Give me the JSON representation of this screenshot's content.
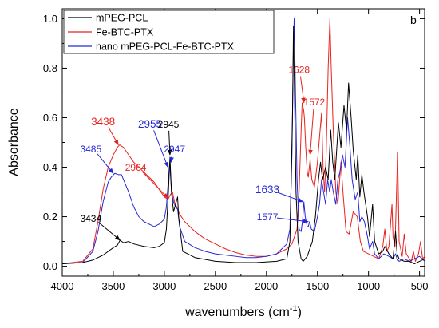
{
  "chart_data": {
    "type": "line",
    "title": "",
    "panel_label": "b",
    "xlabel": "wavenumbers (cm-1)",
    "xlabel_main": "wavenumbers (cm",
    "xlabel_sup": "-1",
    "xlabel_close": ")",
    "ylabel": "Absorbance",
    "xlim": [
      4000,
      450
    ],
    "x_reversed": true,
    "ylim": [
      -0.04,
      1.04
    ],
    "x_ticks": [
      4000,
      3500,
      3000,
      2500,
      2000,
      1500,
      1000,
      500
    ],
    "y_ticks": [
      0.0,
      0.2,
      0.4,
      0.6,
      0.8,
      1.0
    ],
    "y_tick_labels": [
      "0.0",
      "0.2",
      "0.4",
      "0.6",
      "0.8",
      "1.0"
    ],
    "grid": false,
    "legend_position": "top-left",
    "series": [
      {
        "name": "mPEG-PCL",
        "color": "#000000",
        "points": [
          [
            4000,
            0.01
          ],
          [
            3800,
            0.015
          ],
          [
            3700,
            0.025
          ],
          [
            3600,
            0.045
          ],
          [
            3550,
            0.06
          ],
          [
            3500,
            0.075
          ],
          [
            3460,
            0.085
          ],
          [
            3434,
            0.105
          ],
          [
            3400,
            0.095
          ],
          [
            3350,
            0.1
          ],
          [
            3300,
            0.09
          ],
          [
            3200,
            0.08
          ],
          [
            3100,
            0.075
          ],
          [
            3050,
            0.08
          ],
          [
            3000,
            0.095
          ],
          [
            2980,
            0.15
          ],
          [
            2960,
            0.3
          ],
          [
            2945,
            0.44
          ],
          [
            2930,
            0.3
          ],
          [
            2910,
            0.22
          ],
          [
            2890,
            0.25
          ],
          [
            2870,
            0.28
          ],
          [
            2860,
            0.2
          ],
          [
            2820,
            0.06
          ],
          [
            2700,
            0.035
          ],
          [
            2500,
            0.02
          ],
          [
            2300,
            0.015
          ],
          [
            2100,
            0.015
          ],
          [
            1900,
            0.02
          ],
          [
            1800,
            0.03
          ],
          [
            1770,
            0.1
          ],
          [
            1745,
            0.6
          ],
          [
            1735,
            0.97
          ],
          [
            1725,
            0.7
          ],
          [
            1710,
            0.3
          ],
          [
            1690,
            0.1
          ],
          [
            1660,
            0.03
          ],
          [
            1640,
            0.02
          ],
          [
            1600,
            0.04
          ],
          [
            1550,
            0.1
          ],
          [
            1520,
            0.2
          ],
          [
            1490,
            0.35
          ],
          [
            1470,
            0.42
          ],
          [
            1450,
            0.35
          ],
          [
            1420,
            0.4
          ],
          [
            1395,
            0.35
          ],
          [
            1370,
            0.55
          ],
          [
            1350,
            0.42
          ],
          [
            1330,
            0.35
          ],
          [
            1295,
            0.58
          ],
          [
            1270,
            0.48
          ],
          [
            1240,
            0.65
          ],
          [
            1215,
            0.55
          ],
          [
            1195,
            0.74
          ],
          [
            1170,
            0.6
          ],
          [
            1150,
            0.47
          ],
          [
            1120,
            0.35
          ],
          [
            1105,
            0.45
          ],
          [
            1085,
            0.28
          ],
          [
            1065,
            0.37
          ],
          [
            1045,
            0.3
          ],
          [
            1010,
            0.2
          ],
          [
            990,
            0.12
          ],
          [
            960,
            0.25
          ],
          [
            940,
            0.1
          ],
          [
            900,
            0.05
          ],
          [
            860,
            0.06
          ],
          [
            840,
            0.08
          ],
          [
            800,
            0.05
          ],
          [
            760,
            0.03
          ],
          [
            735,
            0.14
          ],
          [
            720,
            0.05
          ],
          [
            700,
            0.03
          ],
          [
            650,
            0.02
          ],
          [
            600,
            0.02
          ],
          [
            550,
            0.01
          ],
          [
            500,
            0.02
          ],
          [
            450,
            0.03
          ]
        ]
      },
      {
        "name": "Fe-BTC-PTX",
        "color": "#e8231f",
        "points": [
          [
            4000,
            0.01
          ],
          [
            3800,
            0.02
          ],
          [
            3700,
            0.07
          ],
          [
            3650,
            0.18
          ],
          [
            3600,
            0.31
          ],
          [
            3550,
            0.4
          ],
          [
            3500,
            0.45
          ],
          [
            3460,
            0.48
          ],
          [
            3438,
            0.49
          ],
          [
            3400,
            0.48
          ],
          [
            3350,
            0.45
          ],
          [
            3300,
            0.42
          ],
          [
            3200,
            0.38
          ],
          [
            3100,
            0.34
          ],
          [
            3050,
            0.31
          ],
          [
            3000,
            0.28
          ],
          [
            2964,
            0.27
          ],
          [
            2940,
            0.29
          ],
          [
            2920,
            0.3
          ],
          [
            2900,
            0.26
          ],
          [
            2850,
            0.21
          ],
          [
            2800,
            0.18
          ],
          [
            2700,
            0.14
          ],
          [
            2600,
            0.11
          ],
          [
            2500,
            0.09
          ],
          [
            2400,
            0.07
          ],
          [
            2300,
            0.055
          ],
          [
            2200,
            0.045
          ],
          [
            2100,
            0.04
          ],
          [
            2000,
            0.04
          ],
          [
            1900,
            0.05
          ],
          [
            1800,
            0.07
          ],
          [
            1750,
            0.09
          ],
          [
            1700,
            0.15
          ],
          [
            1680,
            0.3
          ],
          [
            1660,
            0.55
          ],
          [
            1650,
            0.66
          ],
          [
            1635,
            0.63
          ],
          [
            1628,
            0.6
          ],
          [
            1615,
            0.48
          ],
          [
            1600,
            0.38
          ],
          [
            1590,
            0.36
          ],
          [
            1572,
            0.43
          ],
          [
            1555,
            0.35
          ],
          [
            1530,
            0.32
          ],
          [
            1500,
            0.42
          ],
          [
            1480,
            0.52
          ],
          [
            1460,
            0.62
          ],
          [
            1445,
            0.4
          ],
          [
            1430,
            0.3
          ],
          [
            1415,
            0.45
          ],
          [
            1395,
            0.8
          ],
          [
            1378,
            1.0
          ],
          [
            1365,
            0.8
          ],
          [
            1345,
            0.55
          ],
          [
            1320,
            0.3
          ],
          [
            1300,
            0.25
          ],
          [
            1270,
            0.42
          ],
          [
            1250,
            0.3
          ],
          [
            1220,
            0.14
          ],
          [
            1190,
            0.13
          ],
          [
            1150,
            0.22
          ],
          [
            1110,
            0.2
          ],
          [
            1080,
            0.1
          ],
          [
            1050,
            0.06
          ],
          [
            1000,
            0.05
          ],
          [
            950,
            0.04
          ],
          [
            900,
            0.03
          ],
          [
            860,
            0.08
          ],
          [
            840,
            0.15
          ],
          [
            820,
            0.06
          ],
          [
            800,
            0.08
          ],
          [
            770,
            0.25
          ],
          [
            760,
            0.12
          ],
          [
            740,
            0.08
          ],
          [
            715,
            0.46
          ],
          [
            700,
            0.1
          ],
          [
            670,
            0.04
          ],
          [
            650,
            0.13
          ],
          [
            630,
            0.05
          ],
          [
            600,
            0.03
          ],
          [
            580,
            0.02
          ],
          [
            560,
            0.06
          ],
          [
            540,
            0.02
          ],
          [
            510,
            0.05
          ],
          [
            490,
            0.1
          ],
          [
            470,
            0.03
          ],
          [
            450,
            0.04
          ]
        ]
      },
      {
        "name": "nano mPEG-PCL-Fe-BTC-PTX",
        "color": "#2727d8",
        "points": [
          [
            4000,
            0.01
          ],
          [
            3800,
            0.015
          ],
          [
            3700,
            0.06
          ],
          [
            3650,
            0.14
          ],
          [
            3600,
            0.26
          ],
          [
            3550,
            0.34
          ],
          [
            3520,
            0.36
          ],
          [
            3485,
            0.375
          ],
          [
            3450,
            0.37
          ],
          [
            3420,
            0.37
          ],
          [
            3400,
            0.35
          ],
          [
            3350,
            0.3
          ],
          [
            3300,
            0.24
          ],
          [
            3250,
            0.2
          ],
          [
            3200,
            0.18
          ],
          [
            3150,
            0.17
          ],
          [
            3100,
            0.16
          ],
          [
            3050,
            0.17
          ],
          [
            3000,
            0.19
          ],
          [
            2980,
            0.24
          ],
          [
            2960,
            0.35
          ],
          [
            2955,
            0.38
          ],
          [
            2947,
            0.42
          ],
          [
            2930,
            0.3
          ],
          [
            2910,
            0.26
          ],
          [
            2890,
            0.24
          ],
          [
            2870,
            0.23
          ],
          [
            2850,
            0.16
          ],
          [
            2800,
            0.1
          ],
          [
            2700,
            0.075
          ],
          [
            2600,
            0.06
          ],
          [
            2500,
            0.05
          ],
          [
            2400,
            0.045
          ],
          [
            2300,
            0.04
          ],
          [
            2200,
            0.035
          ],
          [
            2100,
            0.035
          ],
          [
            2000,
            0.04
          ],
          [
            1900,
            0.05
          ],
          [
            1850,
            0.07
          ],
          [
            1800,
            0.09
          ],
          [
            1770,
            0.15
          ],
          [
            1750,
            0.45
          ],
          [
            1735,
            0.9
          ],
          [
            1728,
            1.0
          ],
          [
            1715,
            0.7
          ],
          [
            1700,
            0.35
          ],
          [
            1680,
            0.15
          ],
          [
            1660,
            0.14
          ],
          [
            1645,
            0.19
          ],
          [
            1633,
            0.26
          ],
          [
            1620,
            0.2
          ],
          [
            1600,
            0.16
          ],
          [
            1590,
            0.16
          ],
          [
            1577,
            0.18
          ],
          [
            1560,
            0.15
          ],
          [
            1530,
            0.14
          ],
          [
            1500,
            0.2
          ],
          [
            1480,
            0.25
          ],
          [
            1460,
            0.35
          ],
          [
            1440,
            0.3
          ],
          [
            1420,
            0.25
          ],
          [
            1400,
            0.35
          ],
          [
            1380,
            0.3
          ],
          [
            1365,
            0.35
          ],
          [
            1345,
            0.3
          ],
          [
            1320,
            0.25
          ],
          [
            1300,
            0.35
          ],
          [
            1280,
            0.38
          ],
          [
            1255,
            0.45
          ],
          [
            1230,
            0.4
          ],
          [
            1205,
            0.6
          ],
          [
            1185,
            0.5
          ],
          [
            1160,
            0.35
          ],
          [
            1130,
            0.27
          ],
          [
            1105,
            0.3
          ],
          [
            1085,
            0.18
          ],
          [
            1065,
            0.2
          ],
          [
            1040,
            0.18
          ],
          [
            1010,
            0.12
          ],
          [
            990,
            0.07
          ],
          [
            960,
            0.1
          ],
          [
            940,
            0.05
          ],
          [
            900,
            0.03
          ],
          [
            850,
            0.05
          ],
          [
            800,
            0.04
          ],
          [
            760,
            0.03
          ],
          [
            735,
            0.05
          ],
          [
            720,
            0.03
          ],
          [
            700,
            0.02
          ],
          [
            650,
            0.03
          ],
          [
            600,
            0.02
          ],
          [
            550,
            0.03
          ],
          [
            500,
            0.04
          ],
          [
            450,
            0.02
          ]
        ]
      }
    ],
    "annotations": [
      {
        "text": "3434",
        "color": "#000000",
        "size": "small",
        "text_x": 3720,
        "text_y": 0.18,
        "tip_x": 3434,
        "tip_y": 0.105
      },
      {
        "text": "3438",
        "color": "#e8231f",
        "size": "big",
        "text_x": 3600,
        "text_y": 0.57,
        "tip_x": 3450,
        "tip_y": 0.49
      },
      {
        "text": "3485",
        "color": "#2727d8",
        "size": "small",
        "text_x": 3720,
        "text_y": 0.46,
        "tip_x": 3500,
        "tip_y": 0.375
      },
      {
        "text": "2964",
        "color": "#e8231f",
        "size": "small",
        "text_x": 3280,
        "text_y": 0.385,
        "tip_x": 2964,
        "tip_y": 0.275
      },
      {
        "text": "2955",
        "color": "#2727d8",
        "size": "big",
        "text_x": 3140,
        "text_y": 0.56,
        "tip_x": 2965,
        "tip_y": 0.4
      },
      {
        "text": "2945",
        "color": "#000000",
        "size": "small",
        "text_x": 2960,
        "text_y": 0.56,
        "tip_x": 2945,
        "tip_y": 0.45
      },
      {
        "text": "2947",
        "color": "#2727d8",
        "size": "small",
        "text_x": 2900,
        "text_y": 0.46,
        "tip_x": 2935,
        "tip_y": 0.42
      },
      {
        "text": "1628",
        "color": "#e8231f",
        "size": "small",
        "text_x": 1680,
        "text_y": 0.78,
        "tip_x": 1632,
        "tip_y": 0.66
      },
      {
        "text": "1572",
        "color": "#e8231f",
        "size": "small",
        "text_x": 1530,
        "text_y": 0.65,
        "tip_x": 1572,
        "tip_y": 0.45
      },
      {
        "text": "1633",
        "color": "#2727d8",
        "size": "big",
        "text_x": 1990,
        "text_y": 0.295,
        "tip_x": 1640,
        "tip_y": 0.26
      },
      {
        "text": "1577",
        "color": "#2727d8",
        "size": "small",
        "text_x": 1990,
        "text_y": 0.185,
        "tip_x": 1590,
        "tip_y": 0.18
      }
    ]
  }
}
